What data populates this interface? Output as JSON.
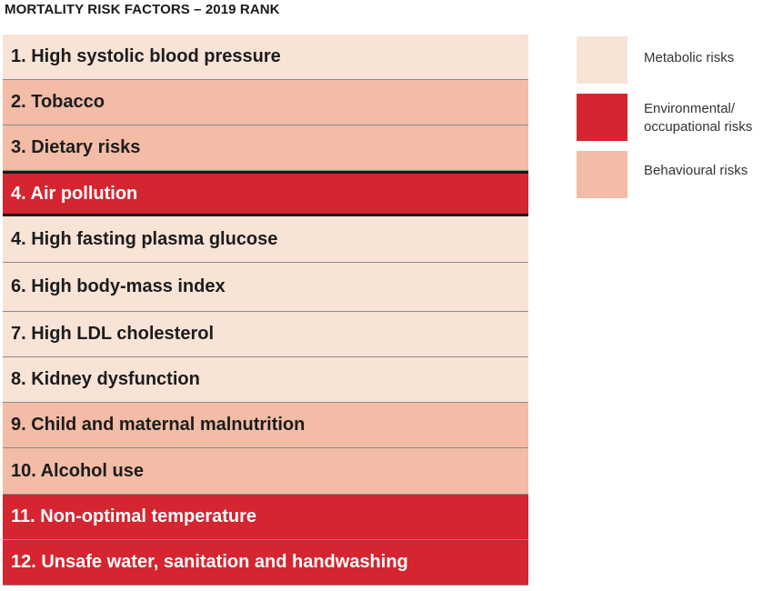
{
  "chart_data": {
    "type": "table",
    "title": "MORTALITY RISK FACTORS – 2019 RANK",
    "rows": [
      {
        "label": "1. High systolic blood pressure",
        "category": "metabolic"
      },
      {
        "label": "2. Tobacco",
        "category": "behavioural"
      },
      {
        "label": "3. Dietary risks",
        "category": "behavioural"
      },
      {
        "label": "4. Air pollution",
        "category": "environmental",
        "emphasized": true
      },
      {
        "label": "4. High fasting plasma glucose",
        "category": "metabolic"
      },
      {
        "label": "6. High body-mass index",
        "category": "metabolic"
      },
      {
        "label": "7. High LDL cholesterol",
        "category": "metabolic"
      },
      {
        "label": "8. Kidney dysfunction",
        "category": "metabolic"
      },
      {
        "label": "9. Child and maternal malnutrition",
        "category": "behavioural"
      },
      {
        "label": "10. Alcohol use",
        "category": "behavioural"
      },
      {
        "label": "11. Non-optimal temperature",
        "category": "environmental"
      },
      {
        "label": "12. Unsafe water, sanitation and handwashing",
        "category": "environmental"
      }
    ],
    "legend": [
      {
        "key": "metabolic",
        "label": "Metabolic risks",
        "color": "#f8e3d7"
      },
      {
        "key": "environmental",
        "label": "Environmental/\noccupational risks",
        "color": "#d42530"
      },
      {
        "key": "behavioural",
        "label": "Behavioural risks",
        "color": "#f2bca6"
      }
    ],
    "colors": {
      "metabolic": "#f8e3d7",
      "environmental": "#d42530",
      "behavioural": "#f2bca6",
      "text_dark": "#1c1c1c",
      "text_light": "#ffffff"
    },
    "legend_position": "top-right"
  }
}
